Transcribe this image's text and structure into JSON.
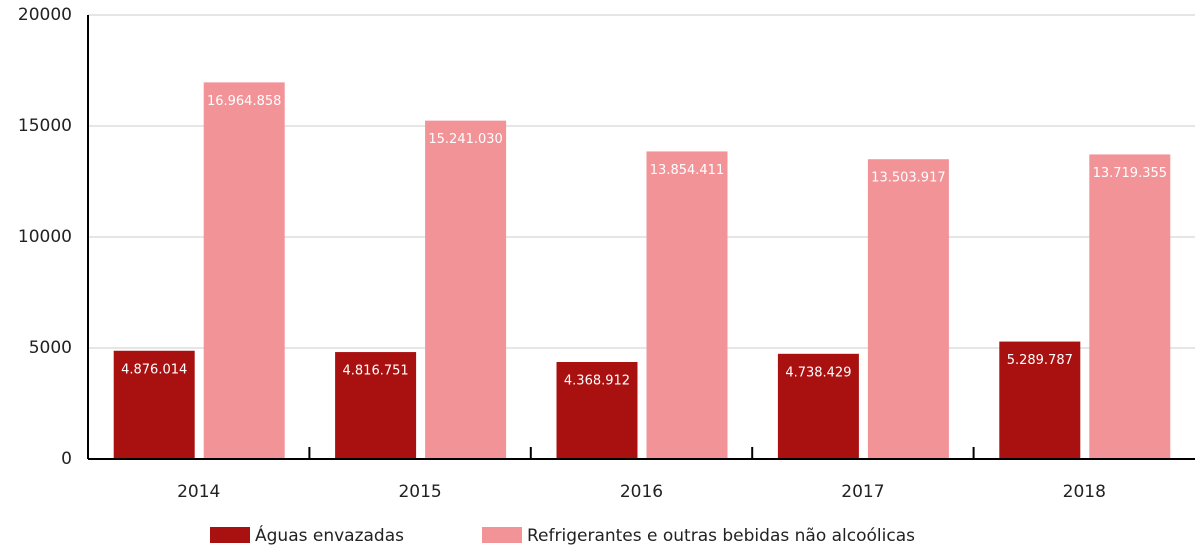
{
  "chart_data": {
    "type": "bar",
    "categories": [
      "2014",
      "2015",
      "2016",
      "2017",
      "2018"
    ],
    "series": [
      {
        "name": "Águas envazadas",
        "color": "#a91111",
        "values": [
          4876.014,
          4816.751,
          4368.912,
          4738.429,
          5289.787
        ],
        "value_labels": [
          "4.876.014",
          "4.816.751",
          "4.368.912",
          "4.738.429",
          "5.289.787"
        ]
      },
      {
        "name": "Refrigerantes e outras bebidas não alcoólicas",
        "color": "#f29398",
        "values": [
          16964.858,
          15241.03,
          13854.411,
          13503.917,
          13719.355
        ],
        "value_labels": [
          "16.964.858",
          "15.241.030",
          "13.854.411",
          "13.503.917",
          "13.719.355"
        ]
      }
    ],
    "ylim": [
      0,
      20000
    ],
    "yticks": [
      0,
      5000,
      10000,
      15000,
      20000
    ],
    "grid": true
  }
}
